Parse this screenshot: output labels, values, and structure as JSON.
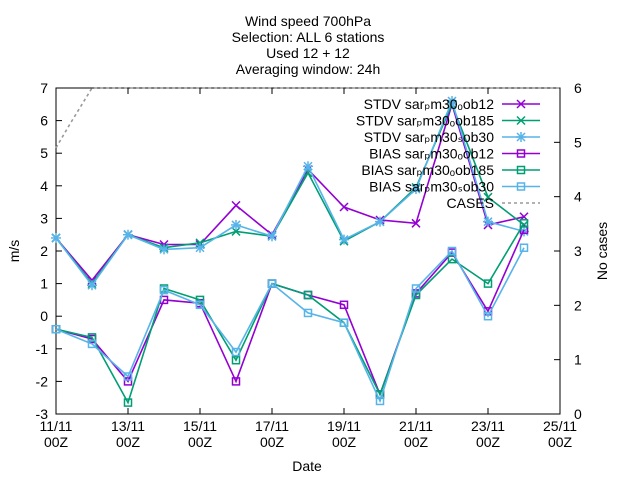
{
  "chart_data": {
    "type": "line",
    "title_lines": [
      "Wind speed 700hPa",
      "Selection: ALL      6 stations",
      "Used 12 + 12",
      "Averaging window: 24h"
    ],
    "xlabel": "Date",
    "ylabel": "m/s",
    "y2label": "No cases",
    "xlim": [
      0,
      14
    ],
    "ylim": [
      -3,
      7
    ],
    "y2lim": [
      0,
      6
    ],
    "x_ticks": [
      {
        "x": 0,
        "line1": "11/11",
        "line2": "00Z"
      },
      {
        "x": 2,
        "line1": "13/11",
        "line2": "00Z"
      },
      {
        "x": 4,
        "line1": "15/11",
        "line2": "00Z"
      },
      {
        "x": 6,
        "line1": "17/11",
        "line2": "00Z"
      },
      {
        "x": 8,
        "line1": "19/11",
        "line2": "00Z"
      },
      {
        "x": 10,
        "line1": "21/11",
        "line2": "00Z"
      },
      {
        "x": 12,
        "line1": "23/11",
        "line2": "00Z"
      },
      {
        "x": 14,
        "line1": "25/11",
        "line2": "00Z"
      }
    ],
    "y_ticks": [
      -3,
      -2,
      -1,
      0,
      1,
      2,
      3,
      4,
      5,
      6,
      7
    ],
    "y2_ticks": [
      0,
      1,
      2,
      3,
      4,
      5,
      6
    ],
    "x": [
      0,
      1,
      2,
      3,
      4,
      5,
      6,
      7,
      8,
      9,
      10,
      11,
      12,
      13
    ],
    "series": [
      {
        "name": "STDV sar_m30_ob12",
        "legend_text": "STDV sarₚm30ₒob12",
        "color": "#9400d3",
        "marker": "cross",
        "values": [
          2.4,
          1.1,
          2.5,
          2.2,
          2.2,
          3.4,
          2.5,
          4.5,
          3.35,
          2.95,
          2.85,
          6.5,
          2.8,
          3.05
        ]
      },
      {
        "name": "STDV sar_m30_ob185",
        "legend_text": "STDV sarₚm30ₒob185",
        "color": "#009e73",
        "marker": "cross",
        "values": [
          2.4,
          1.0,
          2.5,
          2.1,
          2.25,
          2.6,
          2.45,
          4.4,
          2.3,
          2.9,
          3.95,
          6.5,
          3.65,
          2.8
        ]
      },
      {
        "name": "STDV sar_m30_ob30",
        "legend_text": "STDV sarₚm30ₛob30",
        "color": "#56b4e9",
        "marker": "star",
        "values": [
          2.4,
          0.95,
          2.5,
          2.05,
          2.1,
          2.8,
          2.45,
          4.6,
          2.35,
          2.9,
          3.9,
          6.6,
          2.9,
          2.6
        ]
      },
      {
        "name": "BIAS sar_m30_ob12",
        "legend_text": "BIAS sarₚm30ₒob12",
        "color": "#9400d3",
        "marker": "square",
        "values": [
          -0.4,
          -0.7,
          -2.0,
          0.5,
          0.4,
          -2.0,
          1.0,
          0.65,
          0.35,
          -2.4,
          0.7,
          1.95,
          0.15,
          2.65
        ]
      },
      {
        "name": "BIAS sar_m30_ob185",
        "legend_text": "BIAS sarₚm30ₒob185",
        "color": "#009e73",
        "marker": "square",
        "values": [
          -0.4,
          -0.65,
          -2.65,
          0.85,
          0.5,
          -1.35,
          1.0,
          0.65,
          -0.2,
          -2.4,
          0.65,
          1.75,
          1.0,
          2.85
        ]
      },
      {
        "name": "BIAS sar_m30_ob30",
        "legend_text": "BIAS sarₚm30ₛob30",
        "color": "#56b4e9",
        "marker": "square",
        "values": [
          -0.4,
          -0.85,
          -1.85,
          0.8,
          0.35,
          -1.1,
          1.0,
          0.1,
          -0.2,
          -2.6,
          0.85,
          2.0,
          0.0,
          2.1
        ]
      },
      {
        "name": "CASES",
        "legend_text": "CASES",
        "color": "#999999",
        "marker": "none",
        "dashed": true,
        "axis": "y2",
        "x": [
          0,
          0.4,
          1,
          14
        ],
        "values": [
          4.9,
          5.35,
          6,
          6
        ]
      }
    ]
  }
}
